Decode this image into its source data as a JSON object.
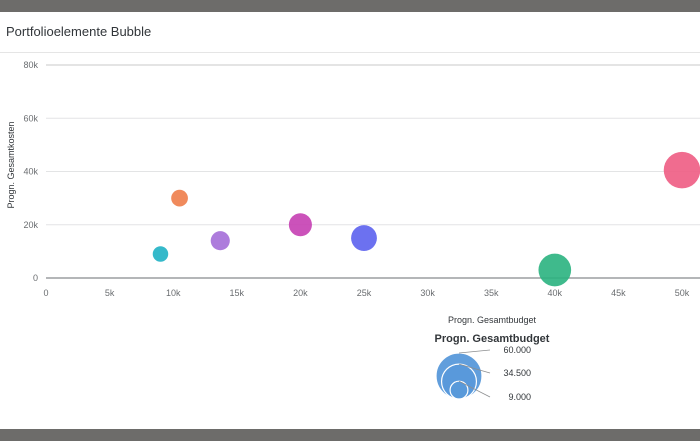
{
  "panel": {
    "title": "Portfolioelemente Bubble"
  },
  "chart_data": {
    "type": "scatter",
    "xlabel": "Progn. Gesamtbudget",
    "ylabel": "Progn. Gesamtkosten",
    "xlim": [
      0,
      50000
    ],
    "ylim": [
      0,
      80000
    ],
    "x_ticks": [
      {
        "value": 0,
        "label": "0"
      },
      {
        "value": 5000,
        "label": "5k"
      },
      {
        "value": 10000,
        "label": "10k"
      },
      {
        "value": 15000,
        "label": "15k"
      },
      {
        "value": 20000,
        "label": "20k"
      },
      {
        "value": 25000,
        "label": "25k"
      },
      {
        "value": 30000,
        "label": "30k"
      },
      {
        "value": 35000,
        "label": "35k"
      },
      {
        "value": 40000,
        "label": "40k"
      },
      {
        "value": 45000,
        "label": "45k"
      },
      {
        "value": 50000,
        "label": "50k"
      }
    ],
    "y_ticks": [
      {
        "value": 0,
        "label": "0"
      },
      {
        "value": 20000,
        "label": "20k"
      },
      {
        "value": 40000,
        "label": "40k"
      },
      {
        "value": 60000,
        "label": "60k"
      },
      {
        "value": 80000,
        "label": "80k"
      }
    ],
    "grid": "horizontal",
    "size_measure": "Progn. Gesamtbudget",
    "points": [
      {
        "x": 9000,
        "y": 9000,
        "size": 9000,
        "color": "#1fb1c4"
      },
      {
        "x": 10500,
        "y": 30000,
        "size": 10500,
        "color": "#ee7d4a"
      },
      {
        "x": 13700,
        "y": 14000,
        "size": 13700,
        "color": "#a46ed8"
      },
      {
        "x": 20000,
        "y": 20000,
        "size": 20000,
        "color": "#c53fb3"
      },
      {
        "x": 25000,
        "y": 15000,
        "size": 25000,
        "color": "#5c62ee"
      },
      {
        "x": 40000,
        "y": 3000,
        "size": 40000,
        "color": "#2ab37f"
      },
      {
        "x": 50000,
        "y": 40500,
        "size": 50000,
        "color": "#ee5c83"
      }
    ],
    "legend": {
      "title": "Progn. Gesamtbudget",
      "placement": "bottom-right",
      "color": "#5899da",
      "entries": [
        {
          "value": 60000,
          "label": "60.000"
        },
        {
          "value": 34500,
          "label": "34.500"
        },
        {
          "value": 9000,
          "label": "9.000"
        }
      ]
    }
  }
}
